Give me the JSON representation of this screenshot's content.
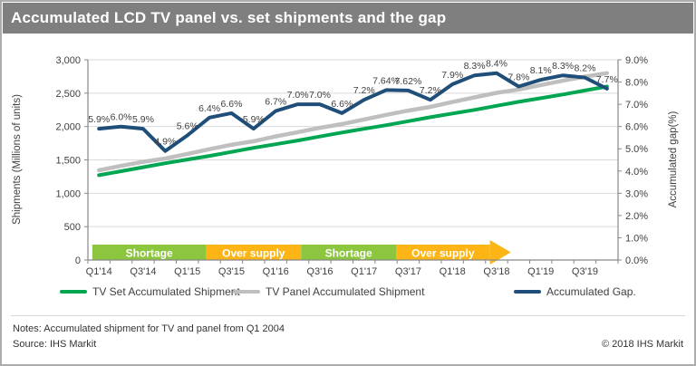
{
  "title": "Accumulated LCD TV panel vs. set shipments and the gap",
  "colors": {
    "title_bar_bg": "#7F7F7F",
    "title_text": "#FFFFFF",
    "axis_text": "#404040",
    "grid_line": "#D9D9D9",
    "axis_line": "#898989",
    "band_shortage": "#8CC63E",
    "band_oversupply": "#FDB515",
    "band_text": "#FFFFFF",
    "set_line": "#00A651",
    "panel_line": "#BFBFBF",
    "gap_line": "#1F4E79"
  },
  "chart_data": {
    "type": "line",
    "title": "Accumulated LCD TV panel vs. set shipments and the gap",
    "ylabel_left": "Shipments (Millions of units)",
    "ylabel_right": "Accumulated gap(%)",
    "ylim_left": [
      0,
      3000
    ],
    "ylim_right_pct": [
      0,
      9
    ],
    "grid": true,
    "y_left_ticks": [
      "0",
      "500",
      "1,000",
      "1,500",
      "2,000",
      "2,500",
      "3,000"
    ],
    "y_right_ticks": [
      "0.0%",
      "1.0%",
      "2.0%",
      "3.0%",
      "4.0%",
      "5.0%",
      "6.0%",
      "7.0%",
      "8.0%",
      "9.0%"
    ],
    "x_tick_labels": [
      "Q1'14",
      "Q3'14",
      "Q1'15",
      "Q3'15",
      "Q1'16",
      "Q3'16",
      "Q1'17",
      "Q3'17",
      "Q1'18",
      "Q3'18",
      "Q1'19",
      "Q3'19"
    ],
    "x_tick_indices": [
      0,
      2,
      4,
      6,
      8,
      10,
      12,
      14,
      16,
      18,
      20,
      22
    ],
    "n_points": 24,
    "series": [
      {
        "name": "TV Set Accumulated Shipment",
        "axis": "left",
        "color_key": "set_line",
        "values": [
          1270,
          1330,
          1390,
          1450,
          1505,
          1560,
          1620,
          1680,
          1735,
          1790,
          1850,
          1910,
          1965,
          2020,
          2080,
          2140,
          2195,
          2250,
          2310,
          2370,
          2425,
          2480,
          2540,
          2600
        ]
      },
      {
        "name": "TV Panel Accumulated Shipment",
        "axis": "left",
        "color_key": "panel_line",
        "values": [
          1345,
          1410,
          1472,
          1521,
          1589,
          1660,
          1727,
          1779,
          1851,
          1915,
          1980,
          2036,
          2106,
          2174,
          2238,
          2294,
          2368,
          2437,
          2504,
          2555,
          2621,
          2686,
          2748,
          2800
        ]
      },
      {
        "name": "Accumulated Gap.",
        "axis": "right",
        "color_key": "gap_line",
        "values": [
          5.9,
          6.0,
          5.9,
          4.9,
          5.6,
          6.4,
          6.6,
          5.9,
          6.7,
          7.0,
          7.0,
          6.6,
          7.2,
          7.64,
          7.62,
          7.2,
          7.9,
          8.3,
          8.4,
          7.8,
          8.1,
          8.3,
          8.2,
          7.7
        ],
        "point_labels": [
          "5.9%",
          "6.0%",
          "5.9%",
          "4.9%",
          "5.6%",
          "6.4%",
          "6.6%",
          "5.9%",
          "6.7%",
          "7.0%",
          "7.0%",
          "6.6%",
          "7.2%",
          "7.64%",
          "7.62%",
          "7.2%",
          "7.9%",
          "8.3%",
          "8.4%",
          "7.8%",
          "8.1%",
          "8.3%",
          "8.2%",
          "7.7%"
        ]
      }
    ],
    "bands": [
      {
        "label": "Shortage",
        "color_key": "band_shortage",
        "q_start": -0.3,
        "q_end": 4.85,
        "arrow": false
      },
      {
        "label": "Over supply",
        "color_key": "band_oversupply",
        "q_start": 4.85,
        "q_end": 9.15,
        "arrow": false
      },
      {
        "label": "Shortage",
        "color_key": "band_shortage",
        "q_start": 9.15,
        "q_end": 13.45,
        "arrow": false
      },
      {
        "label": "Over supply",
        "color_key": "band_oversupply",
        "q_start": 13.45,
        "q_end": 17.7,
        "arrow": true
      }
    ]
  },
  "footer": {
    "notes": "Notes: Accumulated shipment for TV and panel from Q1 2004",
    "source": "Source: IHS Markit",
    "copyright": "© 2018 IHS Markit"
  }
}
